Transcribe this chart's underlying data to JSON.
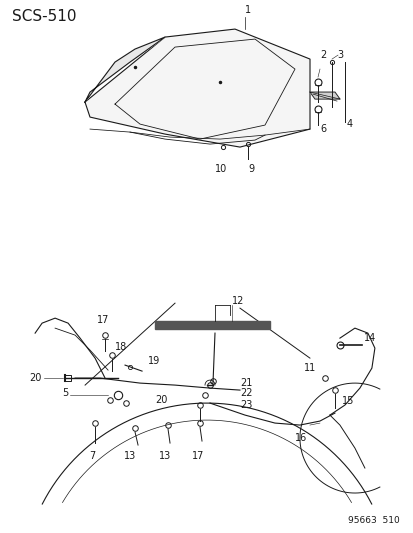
{
  "title": "SCS–510",
  "bg_color": "#ffffff",
  "line_color": "#1a1a1a",
  "text_color": "#1a1a1a",
  "footer_text": "95663  510",
  "label_fontsize": 7,
  "title_fontsize": 11
}
